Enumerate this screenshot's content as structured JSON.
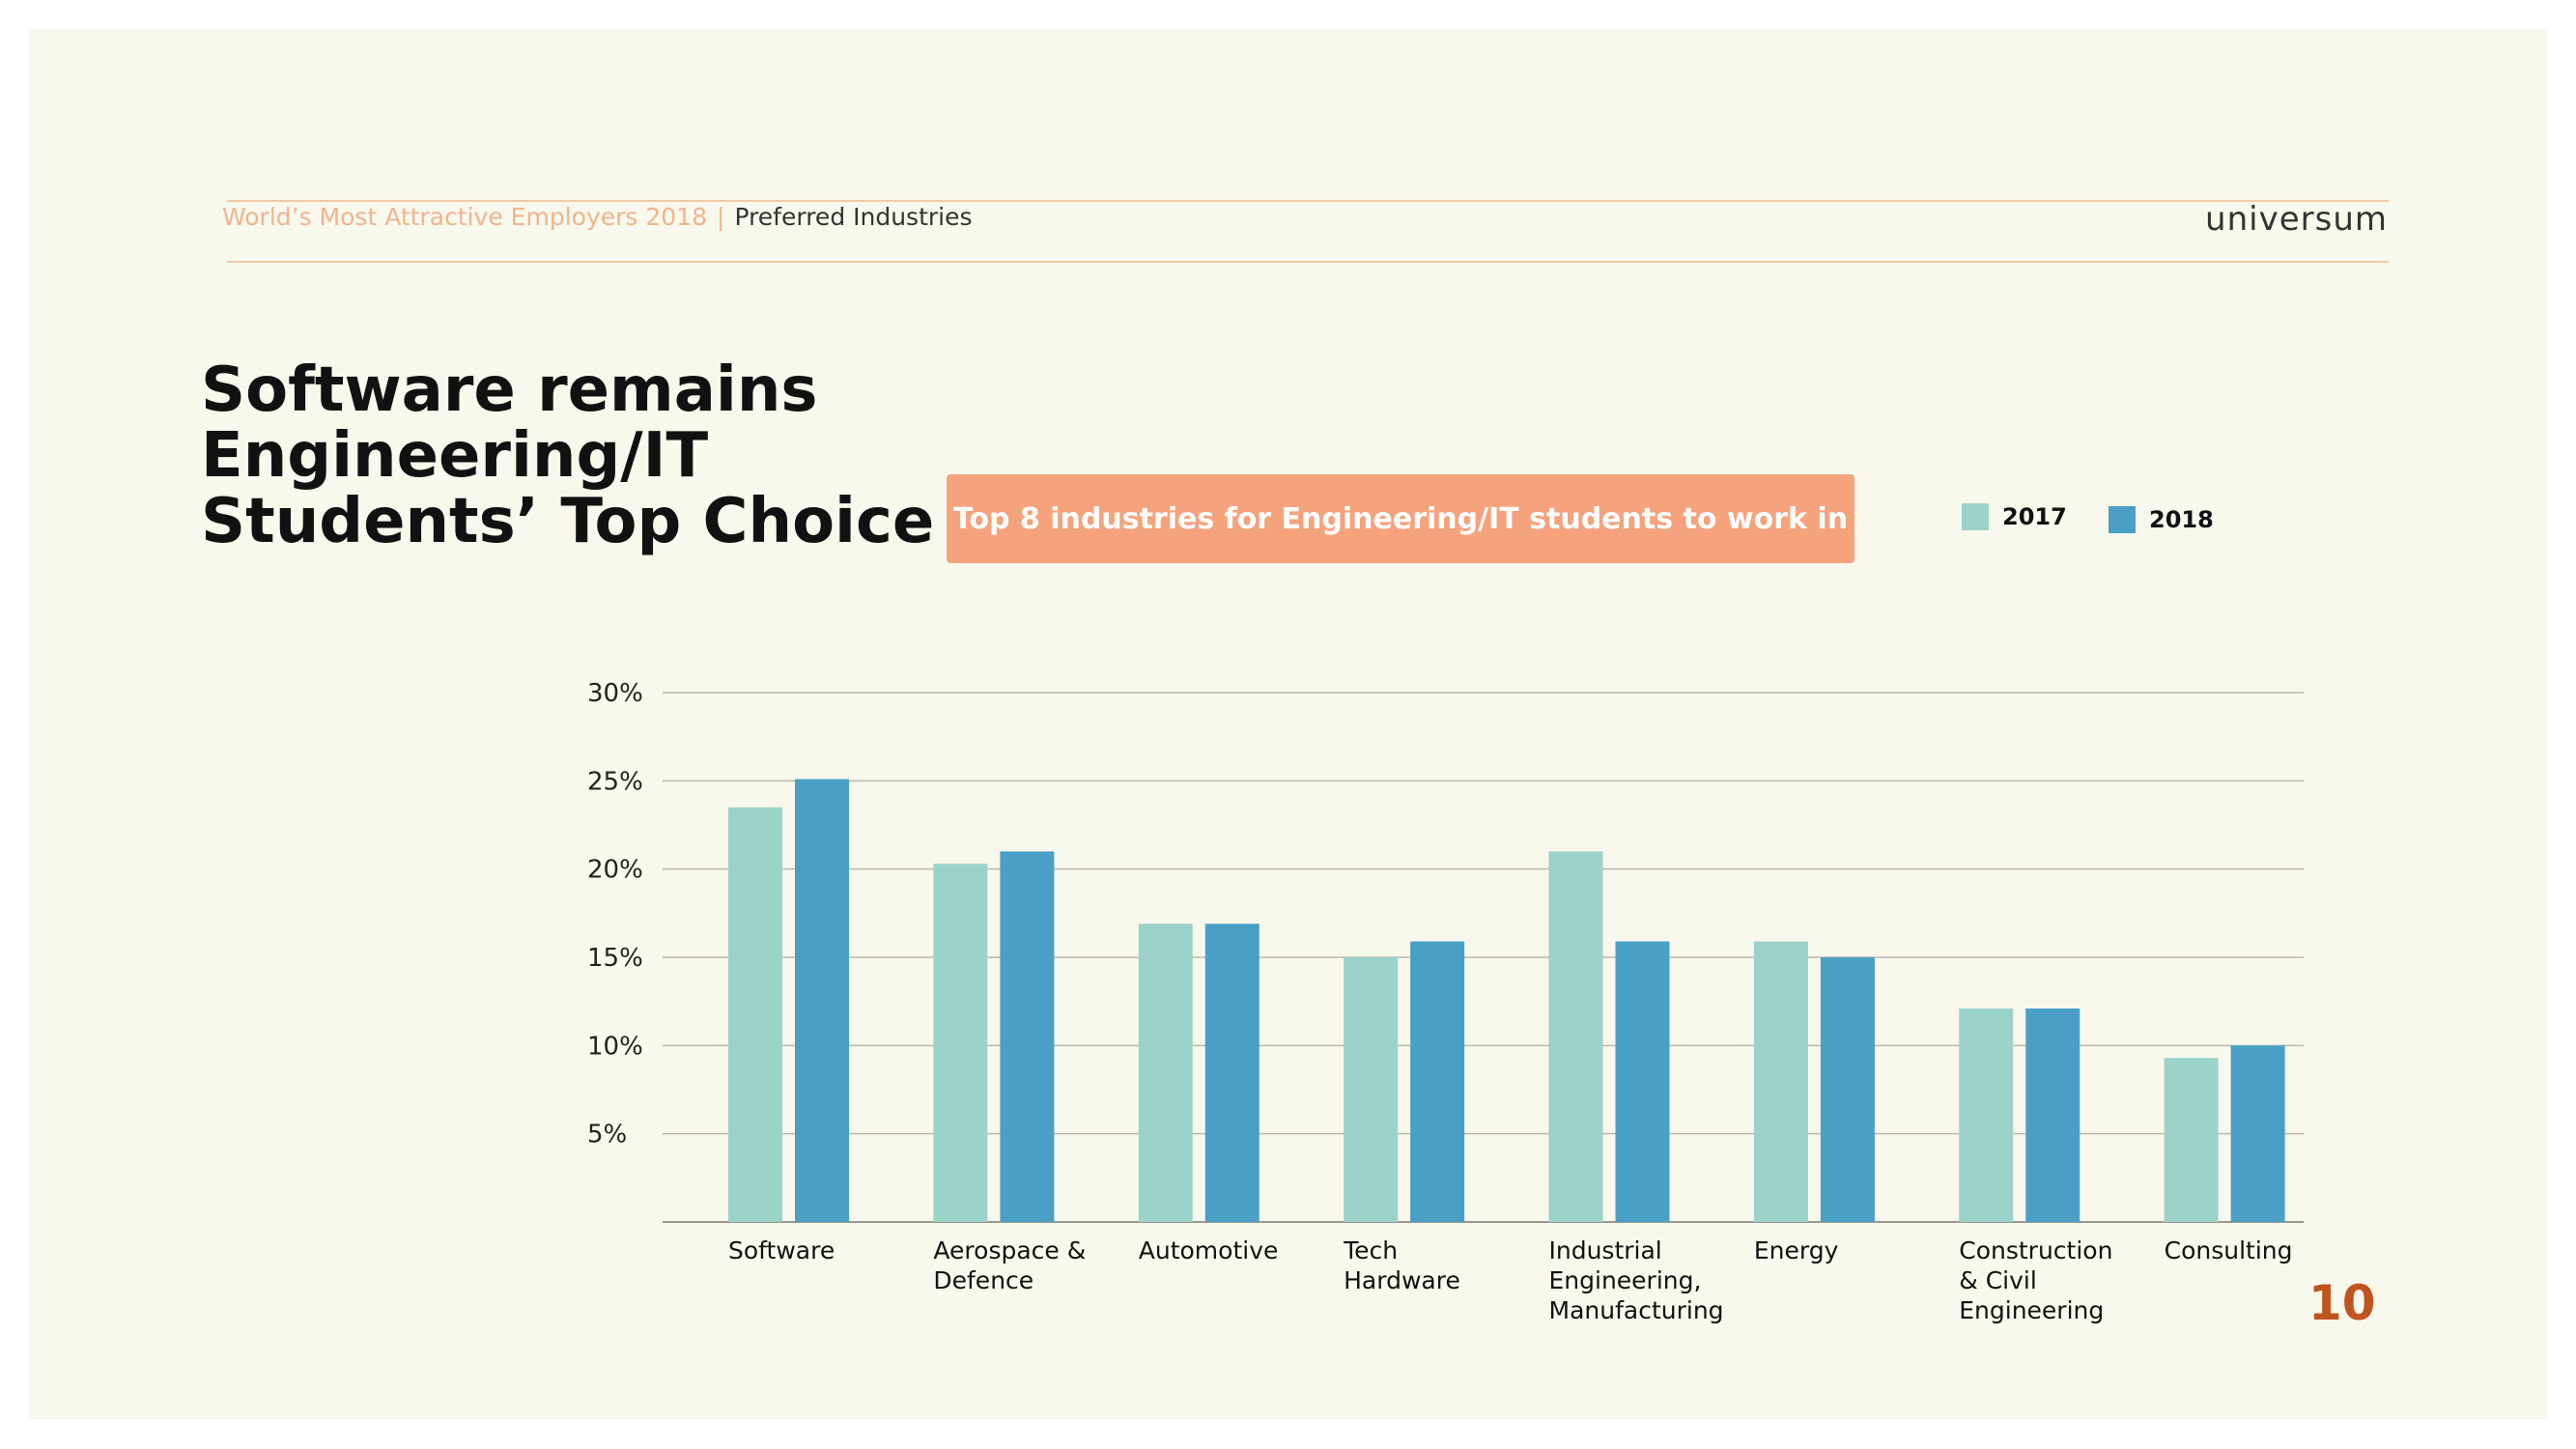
{
  "header": {
    "brand_sub": "World’s Most Attractive Employers 2018",
    "separator": "|",
    "section": "Preferred Industries",
    "logo_text": "universum"
  },
  "title_lines": [
    "Software remains",
    "Engineering/IT",
    "Students’ Top Choice"
  ],
  "banner": "Top 8 industries for Engineering/IT students to work in",
  "page_number": "10",
  "colors": {
    "series_2017": "#9bd3c9",
    "series_2018": "#4a9fc7",
    "banner": "#f5a37d",
    "accent_orange": "#c0541f"
  },
  "chart_data": {
    "type": "bar",
    "categories": [
      [
        "Software"
      ],
      [
        "Aerospace &",
        "Defence"
      ],
      [
        "Automotive"
      ],
      [
        "Tech",
        "Hardware"
      ],
      [
        "Industrial",
        "Engineering,",
        "Manufacturing"
      ],
      [
        "Energy"
      ],
      [
        "Construction",
        "& Civil",
        "Engineering"
      ],
      [
        "Consulting"
      ]
    ],
    "series": [
      {
        "name": "2017",
        "values": [
          23.5,
          20.3,
          16.9,
          15.0,
          21.0,
          15.9,
          12.1,
          9.3
        ]
      },
      {
        "name": "2018",
        "values": [
          25.1,
          21.0,
          16.9,
          15.9,
          15.9,
          15.0,
          12.1,
          10.0
        ]
      }
    ],
    "ylim": [
      0,
      30
    ],
    "yticks": [
      "5%",
      "10%",
      "15%",
      "20%",
      "25%",
      "30%"
    ],
    "ytick_values": [
      5,
      10,
      15,
      20,
      25,
      30
    ],
    "grid": true,
    "legend_position": "top-right"
  }
}
